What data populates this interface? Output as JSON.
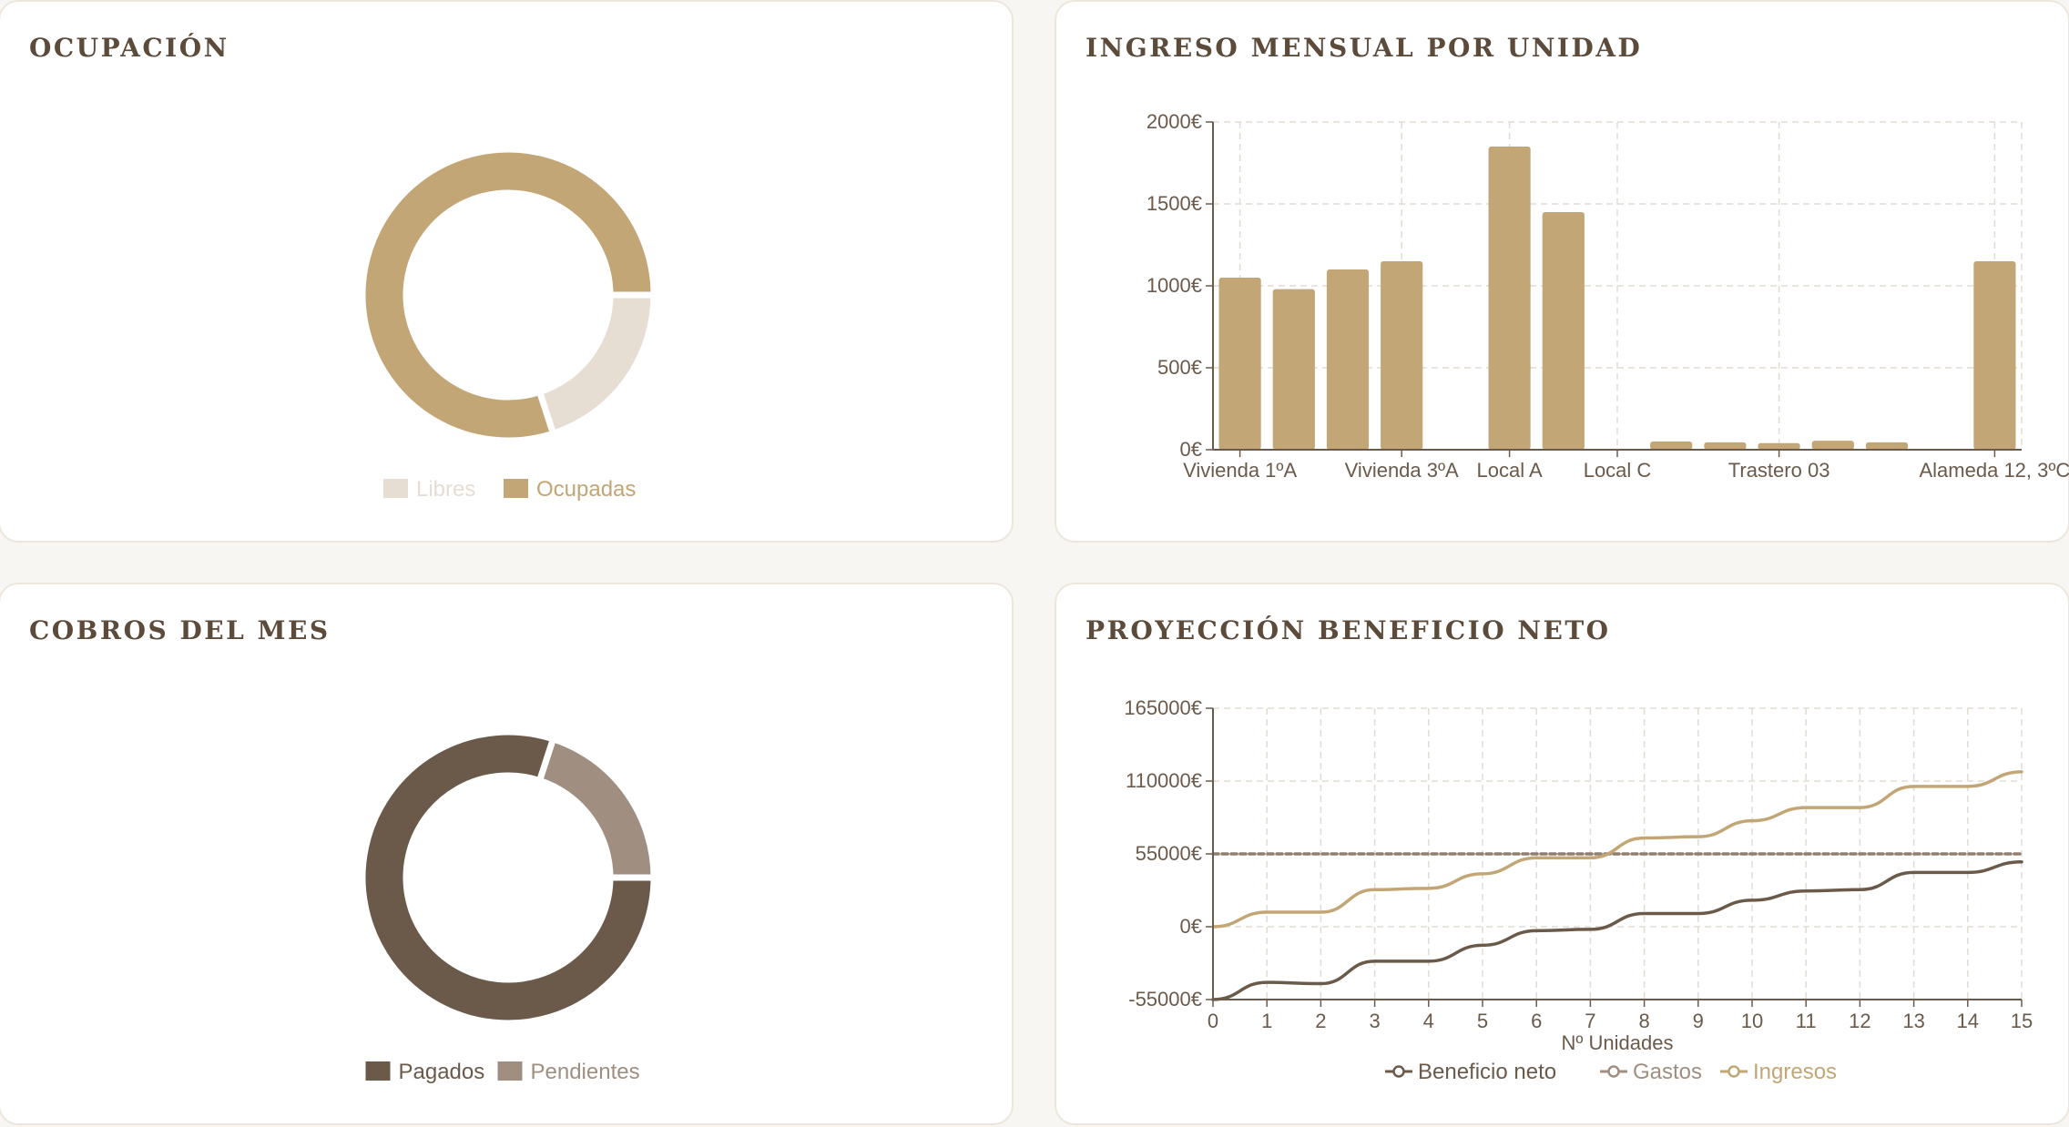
{
  "cards": {
    "ocupacion": {
      "title": "OCUPACIÓN"
    },
    "ingreso": {
      "title": "INGRESO MENSUAL POR UNIDAD"
    },
    "cobros": {
      "title": "COBROS DEL MES"
    },
    "proyeccion": {
      "title": "PROYECCIÓN BENEFICIO NETO"
    }
  },
  "colors": {
    "gold": "#c2a675",
    "light": "#e7ded3",
    "dark": "#6b5a4a",
    "taupe": "#a08f80",
    "grid": "#e2dcd2",
    "dash": "#8f7f70"
  },
  "chart_data": [
    {
      "id": "ocupacion",
      "type": "pie",
      "title": "OCUPACIÓN",
      "slices": [
        {
          "label": "Libres",
          "value": 2,
          "color": "#e7ded3"
        },
        {
          "label": "Ocupadas",
          "value": 8,
          "color": "#c2a675"
        }
      ],
      "legend": "bottom"
    },
    {
      "id": "ingreso",
      "type": "bar",
      "title": "INGRESO MENSUAL POR UNIDAD",
      "categories": [
        "Vivienda 1ºA",
        "",
        "",
        "Vivienda 3ºA",
        "",
        "Local A",
        "",
        "Local C",
        "",
        "",
        "Trastero 03",
        "",
        "",
        "",
        "Alameda 12, 3ºC"
      ],
      "values": [
        1050,
        980,
        1100,
        1150,
        0,
        1850,
        1450,
        0,
        50,
        45,
        40,
        55,
        45,
        0,
        1150
      ],
      "yticks": [
        "0€",
        "500€",
        "1000€",
        "1500€",
        "2000€"
      ],
      "ylim": [
        0,
        2000
      ],
      "grid": true
    },
    {
      "id": "cobros",
      "type": "pie",
      "title": "COBROS DEL MES",
      "slices": [
        {
          "label": "Pagados",
          "value": 8,
          "color": "#6b5a4a"
        },
        {
          "label": "Pendientes",
          "value": 2,
          "color": "#a08f80"
        }
      ],
      "legend": "bottom"
    },
    {
      "id": "proyeccion",
      "type": "line",
      "title": "PROYECCIÓN BENEFICIO NETO",
      "xlabel": "Nº Unidades",
      "x": [
        0,
        1,
        2,
        3,
        4,
        5,
        6,
        7,
        8,
        9,
        10,
        11,
        12,
        13,
        14,
        15
      ],
      "xticks": [
        "0",
        "1",
        "2",
        "3",
        "4",
        "5",
        "6",
        "7",
        "8",
        "9",
        "10",
        "11",
        "12",
        "13",
        "14",
        "15"
      ],
      "yticks": [
        "-55000€",
        "0€",
        "55000€",
        "110000€",
        "165000€"
      ],
      "ylim": [
        -55000,
        165000
      ],
      "grid": true,
      "series": [
        {
          "name": "Beneficio neto",
          "color": "#6b5a4a",
          "values": [
            -55000,
            -42000,
            -43000,
            -26000,
            -26000,
            -14000,
            -3000,
            -2000,
            10000,
            10000,
            20000,
            27000,
            28000,
            41000,
            41000,
            49000
          ]
        },
        {
          "name": "Gastos",
          "color": "#a08f80",
          "dashed": true,
          "values": [
            55000,
            55000,
            55000,
            55000,
            55000,
            55000,
            55000,
            55000,
            55000,
            55000,
            55000,
            55000,
            55000,
            55000,
            55000,
            55000
          ]
        },
        {
          "name": "Ingresos",
          "color": "#c2a675",
          "values": [
            0,
            11000,
            11000,
            28000,
            29000,
            40000,
            52000,
            52000,
            67000,
            68000,
            80000,
            90000,
            90000,
            106000,
            106000,
            117000
          ]
        }
      ],
      "legend": "bottom"
    }
  ]
}
